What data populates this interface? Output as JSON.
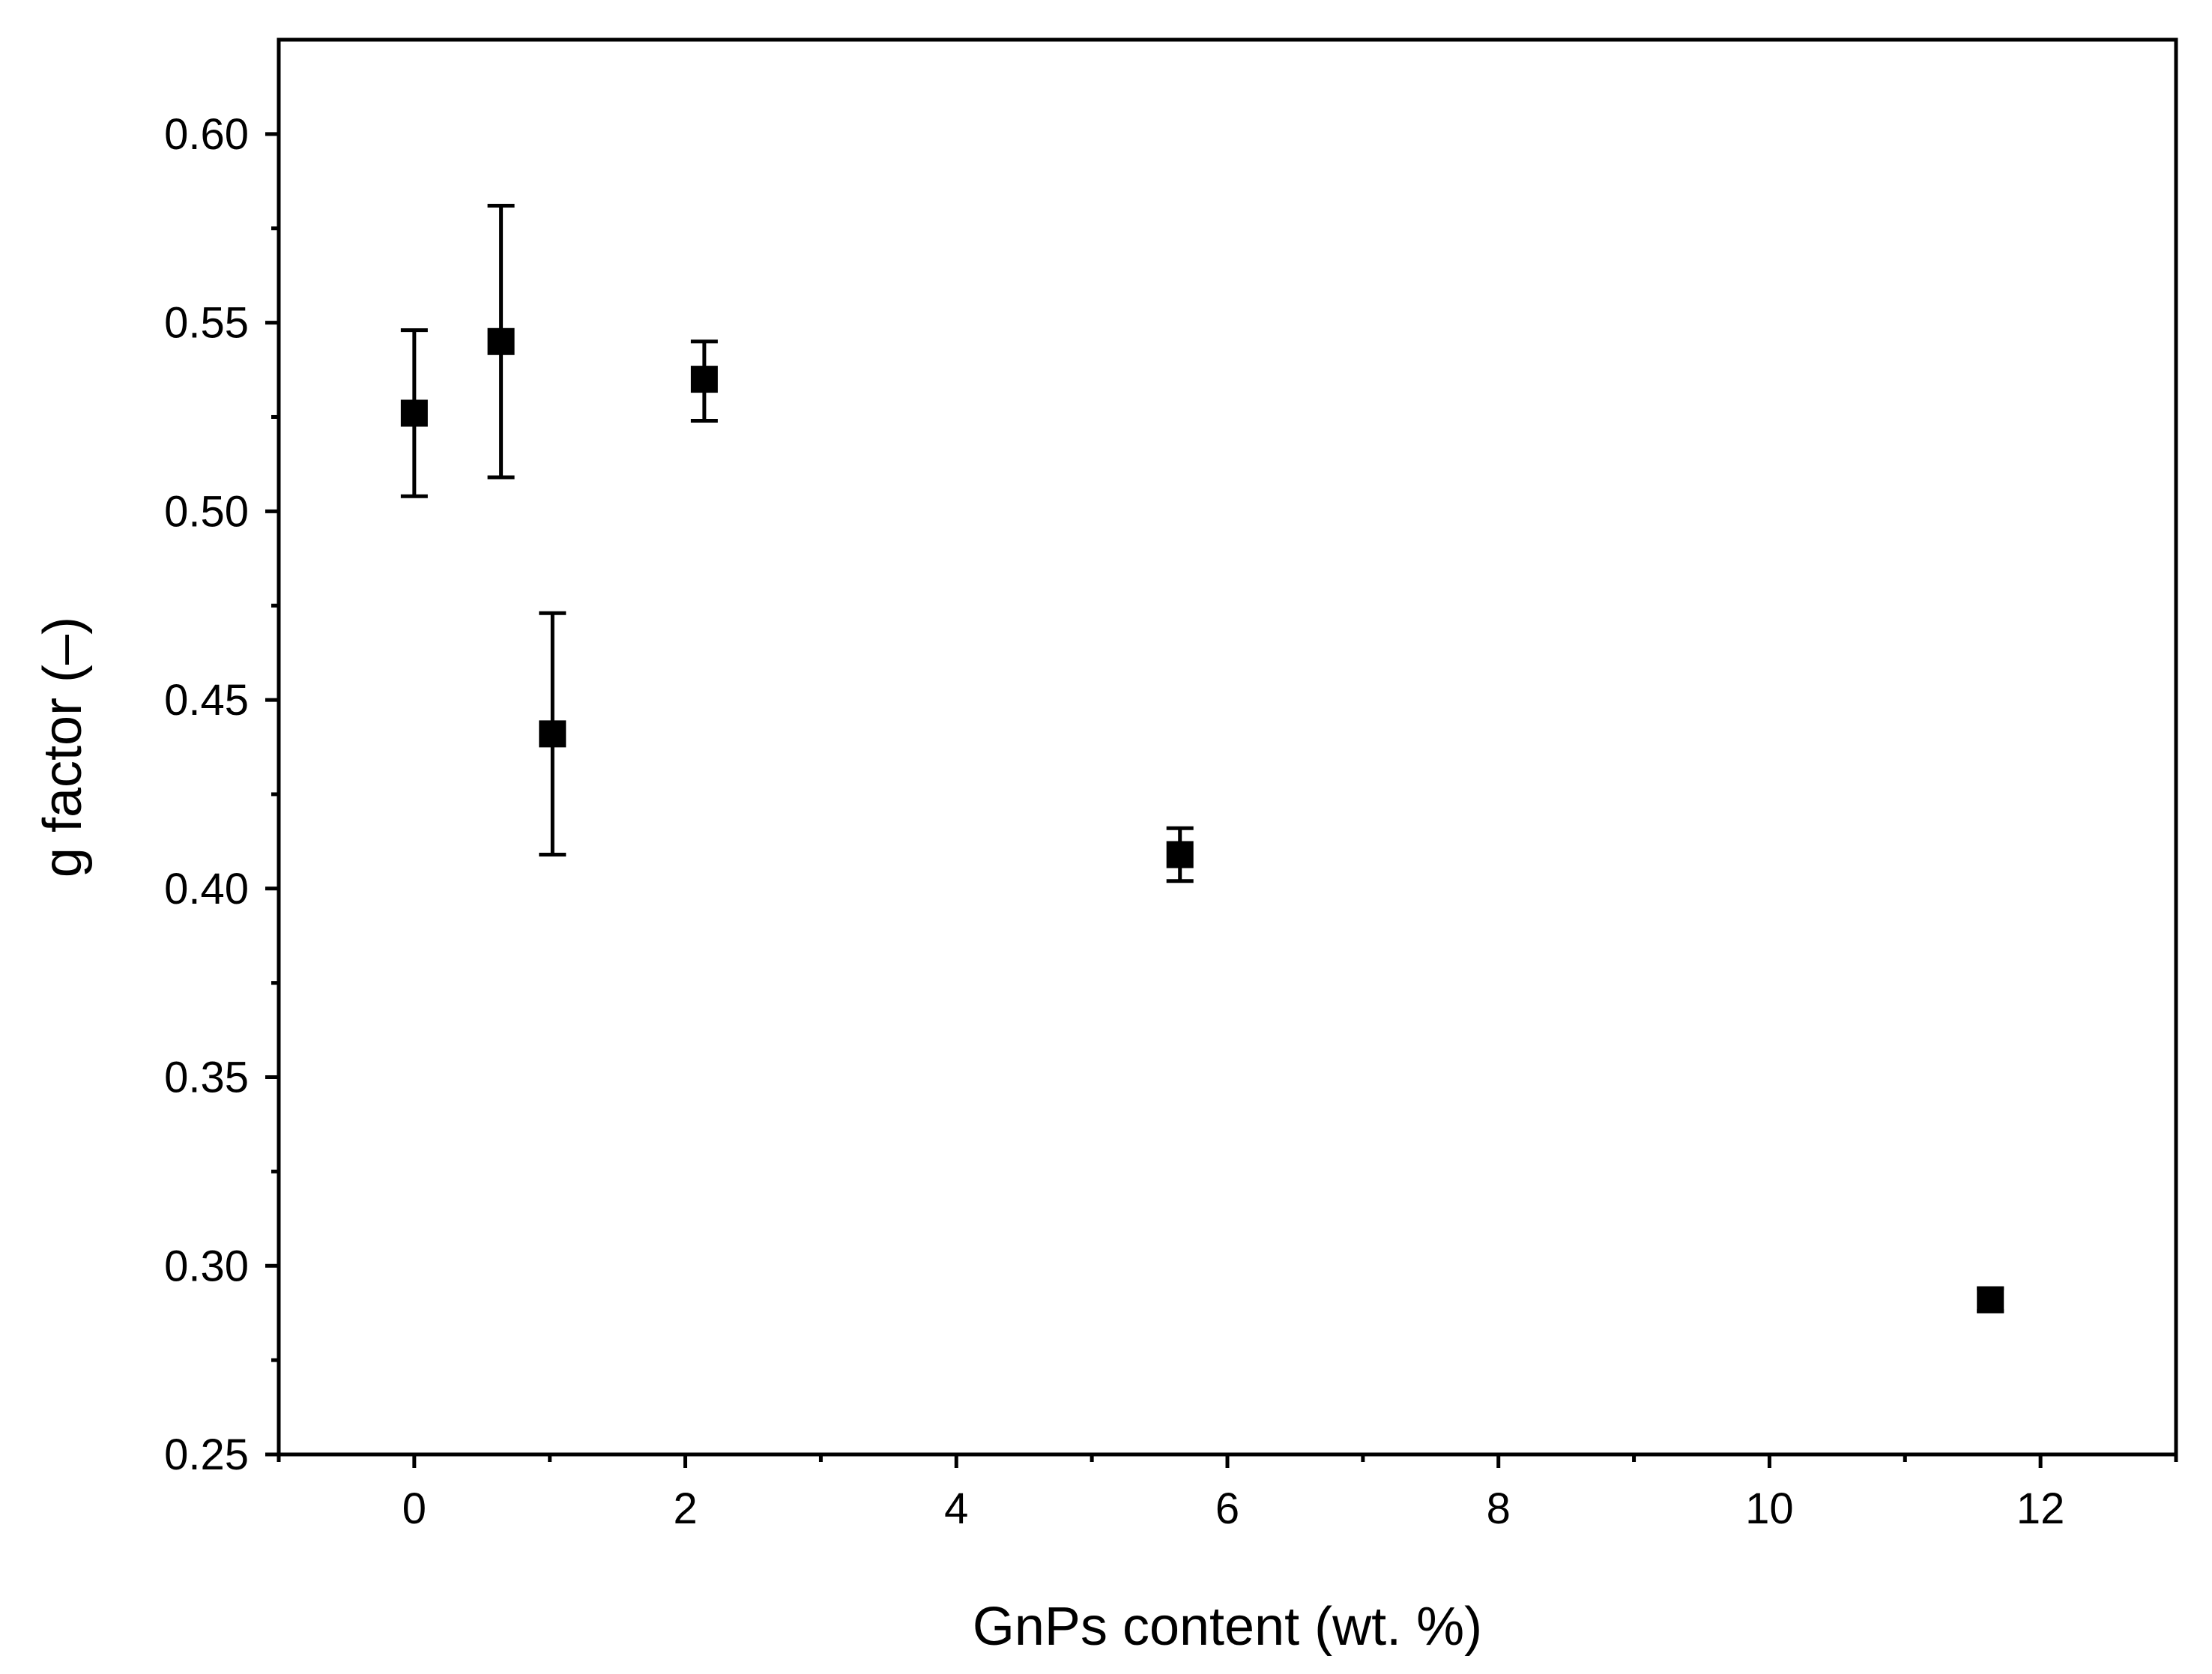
{
  "chart_data": {
    "type": "scatter",
    "title": "",
    "xlabel": "GnPs content (wt. %)",
    "ylabel": "g factor (–)",
    "xlim": [
      -1,
      13
    ],
    "ylim": [
      0.25,
      0.625
    ],
    "x_ticks": [
      "0",
      "2",
      "4",
      "6",
      "8",
      "10",
      "12"
    ],
    "y_ticks": [
      "0.25",
      "0.30",
      "0.35",
      "0.40",
      "0.45",
      "0.50",
      "0.55",
      "0.60"
    ],
    "grid": false,
    "legend": "none",
    "marker": "square",
    "color": "#000000",
    "series": [
      {
        "points": [
          {
            "x": 0.0,
            "y": 0.526,
            "err_low": 0.504,
            "err_high": 0.548
          },
          {
            "x": 0.64,
            "y": 0.545,
            "err_low": 0.509,
            "err_high": 0.581
          },
          {
            "x": 1.02,
            "y": 0.441,
            "err_low": 0.409,
            "err_high": 0.473
          },
          {
            "x": 2.14,
            "y": 0.535,
            "err_low": 0.524,
            "err_high": 0.545
          },
          {
            "x": 5.65,
            "y": 0.409,
            "err_low": 0.402,
            "err_high": 0.416
          },
          {
            "x": 11.63,
            "y": 0.291,
            "err_low": 0.288,
            "err_high": 0.294
          }
        ]
      }
    ]
  }
}
